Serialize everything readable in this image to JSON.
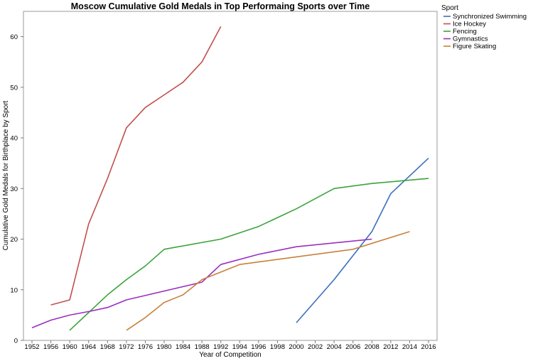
{
  "chart_data": {
    "type": "line",
    "title": "Moscow Cumulative Gold Medals in Top Performaing Sports over Time",
    "xlabel": "Year of Competition",
    "ylabel": "Cumulative Gold Medals for Birthplace by Sport",
    "x_ticks": [
      "1952",
      "1956",
      "1960",
      "1964",
      "1968",
      "1972",
      "1976",
      "1980",
      "1984",
      "1988",
      "1992",
      "1994",
      "1996",
      "1998",
      "2000",
      "2002",
      "2004",
      "2006",
      "2008",
      "2012",
      "2014",
      "2016"
    ],
    "y_ticks": [
      0,
      10,
      20,
      30,
      40,
      50,
      60
    ],
    "ylim": [
      0,
      65
    ],
    "grid": false,
    "legend": {
      "title": "Sport",
      "placement": "right"
    },
    "series": [
      {
        "name": "Synchronized Swimming",
        "color": "#3b6fbf",
        "points": [
          [
            "2000",
            3.5
          ],
          [
            "2004",
            12
          ],
          [
            "2008",
            21.5
          ],
          [
            "2012",
            29
          ],
          [
            "2016",
            36
          ]
        ]
      },
      {
        "name": "Ice Hockey",
        "color": "#c0504d",
        "points": [
          [
            "1956",
            7
          ],
          [
            "1960",
            8
          ],
          [
            "1964",
            23
          ],
          [
            "1968",
            32
          ],
          [
            "1972",
            42
          ],
          [
            "1976",
            46
          ],
          [
            "1980",
            48.5
          ],
          [
            "1984",
            51
          ],
          [
            "1988",
            55
          ],
          [
            "1992",
            62
          ]
        ]
      },
      {
        "name": "Fencing",
        "color": "#3aa43a",
        "points": [
          [
            "1960",
            2
          ],
          [
            "1968",
            9
          ],
          [
            "1972",
            12
          ],
          [
            "1976",
            14.7
          ],
          [
            "1980",
            18
          ],
          [
            "1992",
            20
          ],
          [
            "1996",
            22.5
          ],
          [
            "2000",
            26
          ],
          [
            "2004",
            30
          ],
          [
            "2008",
            31
          ],
          [
            "2016",
            32
          ]
        ]
      },
      {
        "name": "Gymnastics",
        "color": "#9a2fc0",
        "points": [
          [
            "1952",
            2.5
          ],
          [
            "1956",
            4
          ],
          [
            "1960",
            5
          ],
          [
            "1964",
            5.7
          ],
          [
            "1968",
            6.5
          ],
          [
            "1972",
            8
          ],
          [
            "1988",
            11.5
          ],
          [
            "1992",
            15
          ],
          [
            "1996",
            17
          ],
          [
            "2000",
            18.5
          ],
          [
            "2008",
            20
          ]
        ]
      },
      {
        "name": "Figure Skating",
        "color": "#c8813a",
        "points": [
          [
            "1972",
            2
          ],
          [
            "1976",
            4.5
          ],
          [
            "1980",
            7.5
          ],
          [
            "1984",
            9
          ],
          [
            "1988",
            12
          ],
          [
            "1994",
            15
          ],
          [
            "2006",
            18
          ],
          [
            "2014",
            21.5
          ]
        ]
      }
    ]
  }
}
